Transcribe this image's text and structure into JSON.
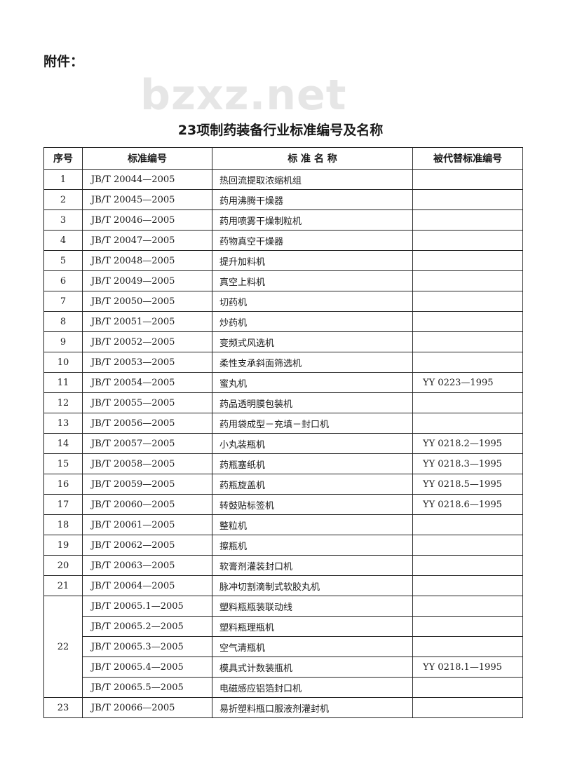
{
  "attachment_label": "附件：",
  "watermark": "bzxz.net",
  "title": "23项制药装备行业标准编号及名称",
  "table": {
    "headers": [
      "序号",
      "标准编号",
      "标 准 名 称",
      "被代替标准编号"
    ],
    "rows": [
      {
        "no": "1",
        "code": "JB/T 20044—2005",
        "name": "热回流提取浓缩机组",
        "rep": ""
      },
      {
        "no": "2",
        "code": "JB/T 20045—2005",
        "name": "药用沸腾干燥器",
        "rep": ""
      },
      {
        "no": "3",
        "code": "JB/T 20046—2005",
        "name": "药用喷雾干燥制粒机",
        "rep": ""
      },
      {
        "no": "4",
        "code": "JB/T 20047—2005",
        "name": "药物真空干燥器",
        "rep": ""
      },
      {
        "no": "5",
        "code": "JB/T 20048—2005",
        "name": "提升加料机",
        "rep": ""
      },
      {
        "no": "6",
        "code": "JB/T 20049—2005",
        "name": "真空上料机",
        "rep": ""
      },
      {
        "no": "7",
        "code": "JB/T 20050—2005",
        "name": "切药机",
        "rep": ""
      },
      {
        "no": "8",
        "code": "JB/T 20051—2005",
        "name": "炒药机",
        "rep": ""
      },
      {
        "no": "9",
        "code": "JB/T 20052—2005",
        "name": "变频式风选机",
        "rep": ""
      },
      {
        "no": "10",
        "code": "JB/T 20053—2005",
        "name": "柔性支承斜面筛选机",
        "rep": ""
      },
      {
        "no": "11",
        "code": "JB/T 20054—2005",
        "name": "蜜丸机",
        "rep": "YY 0223—1995"
      },
      {
        "no": "12",
        "code": "JB/T 20055—2005",
        "name": "药品透明膜包装机",
        "rep": ""
      },
      {
        "no": "13",
        "code": "JB/T 20056—2005",
        "name": "药用袋成型－充填－封口机",
        "rep": ""
      },
      {
        "no": "14",
        "code": "JB/T 20057—2005",
        "name": "小丸装瓶机",
        "rep": "YY 0218.2—1995"
      },
      {
        "no": "15",
        "code": "JB/T 20058—2005",
        "name": "药瓶塞纸机",
        "rep": "YY 0218.3—1995"
      },
      {
        "no": "16",
        "code": "JB/T 20059—2005",
        "name": "药瓶旋盖机",
        "rep": "YY 0218.5—1995"
      },
      {
        "no": "17",
        "code": "JB/T 20060—2005",
        "name": "转鼓贴标签机",
        "rep": "YY 0218.6—1995"
      },
      {
        "no": "18",
        "code": "JB/T 20061—2005",
        "name": "整粒机",
        "rep": ""
      },
      {
        "no": "19",
        "code": "JB/T 20062—2005",
        "name": "擦瓶机",
        "rep": ""
      },
      {
        "no": "20",
        "code": "JB/T 20063—2005",
        "name": "软膏剂灌装封口机",
        "rep": ""
      },
      {
        "no": "21",
        "code": "JB/T 20064—2005",
        "name": "脉冲切割滴制式软胶丸机",
        "rep": ""
      }
    ],
    "group22": {
      "no": "22",
      "items": [
        {
          "code": "JB/T 20065.1—2005",
          "name": "塑料瓶瓶装联动线",
          "rep": ""
        },
        {
          "code": "JB/T 20065.2—2005",
          "name": "塑料瓶理瓶机",
          "rep": ""
        },
        {
          "code": "JB/T 20065.3—2005",
          "name": "空气清瓶机",
          "rep": ""
        },
        {
          "code": "JB/T 20065.4—2005",
          "name": "模具式计数装瓶机",
          "rep": "YY 0218.1—1995"
        },
        {
          "code": "JB/T 20065.5—2005",
          "name": "电磁感应铝箔封口机",
          "rep": ""
        }
      ]
    },
    "last": {
      "no": "23",
      "code": "JB/T 20066—2005",
      "name": "易折塑料瓶口服液剂灌封机",
      "rep": ""
    }
  }
}
